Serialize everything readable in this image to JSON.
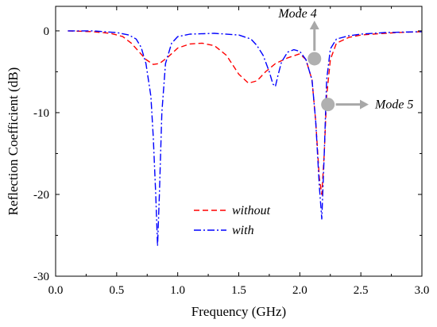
{
  "chart_data": {
    "type": "line",
    "title": "",
    "xlabel": "Frequency (GHz)",
    "ylabel": "Reflection Coefficient (dB)",
    "xlim": [
      0.0,
      3.0
    ],
    "ylim": [
      -30,
      3
    ],
    "xticks": [
      0.0,
      0.5,
      1.0,
      1.5,
      2.0,
      2.5,
      3.0
    ],
    "xtick_labels": [
      "0.0",
      "0.5",
      "1.0",
      "1.5",
      "2.0",
      "2.5",
      "3.0"
    ],
    "yticks": [
      0,
      -10,
      -20,
      -30
    ],
    "ytick_labels": [
      "0",
      "-10",
      "-20",
      "-30"
    ],
    "grid": false,
    "legend_position": "lower-center",
    "series": [
      {
        "name": "without",
        "color": "#ff0000",
        "line_style": "dashed",
        "x": [
          0.1,
          0.3,
          0.45,
          0.55,
          0.62,
          0.68,
          0.74,
          0.8,
          0.85,
          0.92,
          1.0,
          1.1,
          1.2,
          1.3,
          1.4,
          1.5,
          1.58,
          1.65,
          1.72,
          1.8,
          1.9,
          2.0,
          2.05,
          2.1,
          2.13,
          2.16,
          2.18,
          2.2,
          2.22,
          2.25,
          2.3,
          2.4,
          2.5,
          2.6,
          2.8,
          3.0
        ],
        "y": [
          0.0,
          -0.1,
          -0.3,
          -0.7,
          -1.5,
          -2.5,
          -3.5,
          -4.1,
          -4.0,
          -3.2,
          -2.1,
          -1.6,
          -1.5,
          -1.8,
          -3.0,
          -5.3,
          -6.4,
          -6.1,
          -5.0,
          -4.0,
          -3.3,
          -2.8,
          -3.5,
          -6.0,
          -11.0,
          -18.0,
          -20.0,
          -15.0,
          -8.0,
          -3.5,
          -1.5,
          -0.8,
          -0.5,
          -0.4,
          -0.2,
          -0.1
        ]
      },
      {
        "name": "with",
        "color": "#0000ff",
        "line_style": "dash-dot",
        "x": [
          0.1,
          0.3,
          0.5,
          0.6,
          0.66,
          0.7,
          0.74,
          0.78,
          0.8,
          0.82,
          0.835,
          0.85,
          0.87,
          0.9,
          0.95,
          1.0,
          1.1,
          1.3,
          1.5,
          1.6,
          1.65,
          1.7,
          1.75,
          1.78,
          1.8,
          1.82,
          1.85,
          1.9,
          1.95,
          2.0,
          2.05,
          2.1,
          2.13,
          2.16,
          2.18,
          2.2,
          2.22,
          2.25,
          2.3,
          2.4,
          2.5,
          2.7,
          3.0
        ],
        "y": [
          0.0,
          0.0,
          -0.2,
          -0.5,
          -1.0,
          -2.0,
          -4.0,
          -8.0,
          -13.0,
          -20.0,
          -26.3,
          -20.0,
          -10.0,
          -4.0,
          -1.5,
          -0.7,
          -0.4,
          -0.3,
          -0.5,
          -1.0,
          -1.8,
          -3.0,
          -5.0,
          -6.5,
          -6.8,
          -5.5,
          -3.8,
          -2.6,
          -2.3,
          -2.5,
          -3.5,
          -6.0,
          -11.0,
          -19.0,
          -23.0,
          -15.0,
          -6.0,
          -2.2,
          -1.0,
          -0.6,
          -0.4,
          -0.2,
          -0.1
        ]
      }
    ],
    "legend": [
      {
        "label": "without",
        "color": "#ff0000",
        "line_style": "dashed"
      },
      {
        "label": "with",
        "color": "#0000ff",
        "line_style": "dash-dot"
      }
    ],
    "annotations": [
      {
        "label": "Mode 4",
        "marker_x": 2.12,
        "marker_y": -3.4,
        "arrow": "up"
      },
      {
        "label": "Mode 5",
        "marker_x": 2.23,
        "marker_y": -9.0,
        "arrow": "right"
      }
    ]
  }
}
